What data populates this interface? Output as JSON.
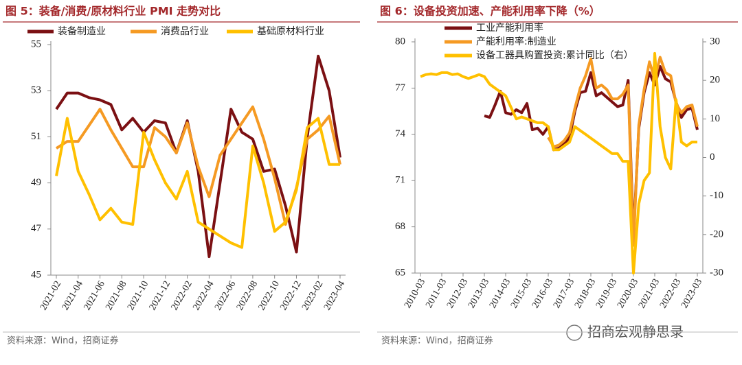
{
  "chart_data": [
    {
      "type": "line",
      "title": "图 5：装备/消费/原材料行业 PMI 走势对比",
      "source": "资料来源：Wind，招商证券",
      "legend": "top",
      "categories": [
        "2021-02",
        null,
        "2021-04",
        null,
        "2021-06",
        null,
        "2021-08",
        null,
        "2021-10",
        null,
        "2021-12",
        null,
        "2022-02",
        null,
        "2022-04",
        null,
        "2022-06",
        null,
        "2022-08",
        null,
        "2022-10",
        null,
        "2022-12",
        null,
        "2023-02",
        null,
        "2023-04"
      ],
      "ylim": [
        45,
        55
      ],
      "yticks": [
        45,
        47,
        49,
        51,
        53,
        55
      ],
      "series": [
        {
          "name": "装备制造业",
          "color": "#7b1013",
          "values": [
            52.2,
            52.9,
            52.9,
            52.7,
            52.6,
            52.4,
            51.3,
            51.8,
            51.2,
            51.7,
            51.6,
            50.3,
            51.7,
            49.5,
            45.8,
            49.0,
            52.2,
            51.2,
            50.9,
            49.5,
            49.6,
            48.0,
            46.0,
            51.0,
            54.5,
            53.0,
            50.1
          ]
        },
        {
          "name": "消费品行业",
          "color": "#f59a23",
          "values": [
            50.5,
            50.8,
            50.8,
            51.5,
            52.2,
            51.3,
            50.5,
            49.7,
            49.7,
            51.4,
            51.0,
            50.3,
            51.6,
            49.7,
            48.4,
            50.2,
            50.9,
            51.6,
            52.3,
            50.9,
            49.2,
            47.2,
            48.8,
            50.9,
            51.3,
            51.9,
            49.8
          ]
        },
        {
          "name": "基础原材料行业",
          "color": "#ffc000",
          "values": [
            49.3,
            51.8,
            49.5,
            48.5,
            47.4,
            47.9,
            47.3,
            47.2,
            51.2,
            50.0,
            49.0,
            48.3,
            49.5,
            47.3,
            47.0,
            46.7,
            46.4,
            46.2,
            50.6,
            49.0,
            46.9,
            47.3,
            48.7,
            51.4,
            51.8,
            49.8,
            49.8
          ]
        }
      ]
    },
    {
      "type": "line",
      "title": "图 6：设备投资加速、产能利用率下降（%）",
      "source": "资料来源：Wind，招商证券",
      "legend": "upper left",
      "categories": [
        "2010-03",
        null,
        null,
        null,
        "2011-03",
        null,
        null,
        null,
        "2012-03",
        null,
        null,
        null,
        "2013-03",
        null,
        null,
        null,
        "2014-03",
        null,
        null,
        null,
        "2015-03",
        null,
        null,
        null,
        "2016-03",
        null,
        null,
        null,
        "2017-03",
        null,
        null,
        null,
        "2018-03",
        null,
        null,
        null,
        "2019-03",
        null,
        null,
        null,
        "2020-03",
        null,
        null,
        null,
        "2021-03",
        null,
        null,
        null,
        "2022-03",
        null,
        null,
        null,
        "2023-03"
      ],
      "ylim": [
        65,
        80
      ],
      "yticks": [
        65,
        68,
        71,
        74,
        77,
        80
      ],
      "y2lim": [
        -30,
        30
      ],
      "y2ticks": [
        -30,
        -20,
        -10,
        0,
        10,
        20,
        30
      ],
      "series": [
        {
          "name": "工业产能利用率",
          "color": "#7b1013",
          "values": [
            null,
            null,
            null,
            null,
            null,
            null,
            null,
            null,
            null,
            null,
            null,
            null,
            75.2,
            75.1,
            75.9,
            76.8,
            75.4,
            75.3,
            75.6,
            75.4,
            76.0,
            74.3,
            74.4,
            74.0,
            74.5,
            73.0,
            73.1,
            73.4,
            73.8,
            75.5,
            76.7,
            76.8,
            78.0,
            76.5,
            76.7,
            76.4,
            76.1,
            75.8,
            75.9,
            77.5,
            67.3,
            74.4,
            76.7,
            78.0,
            77.2,
            78.4,
            77.6,
            77.4,
            76.1,
            75.1,
            75.6,
            75.7,
            74.3
          ]
        },
        {
          "name": "产能利用率:制造业",
          "color": "#f59a23",
          "values": [
            null,
            null,
            null,
            null,
            null,
            null,
            null,
            null,
            null,
            null,
            null,
            null,
            null,
            null,
            null,
            null,
            null,
            null,
            null,
            null,
            null,
            null,
            null,
            null,
            73.8,
            73.2,
            73.3,
            73.6,
            74.1,
            75.7,
            77.0,
            77.8,
            78.9,
            77.0,
            77.2,
            76.9,
            76.3,
            76.3,
            76.6,
            77.2,
            66.8,
            74.6,
            76.9,
            78.7,
            77.6,
            79.0,
            78.0,
            77.8,
            76.0,
            75.4,
            75.8,
            75.9,
            74.5
          ]
        },
        {
          "name": "设备工器具购置投资:累计同比（右）",
          "color": "#ffc000",
          "axis": "y2",
          "values": [
            21,
            21.5,
            21.7,
            21.5,
            22,
            22,
            21.5,
            21.7,
            21,
            20.5,
            21,
            21.5,
            21,
            19,
            18,
            17,
            16,
            13,
            10,
            10.5,
            10,
            9.5,
            9,
            9,
            8,
            2,
            2,
            3,
            4,
            8,
            7,
            6,
            5,
            4,
            3,
            2,
            1,
            1,
            -1,
            -1,
            -30,
            -12,
            -6,
            -4,
            27,
            8,
            0,
            -3,
            15,
            4,
            3,
            4,
            4
          ]
        }
      ]
    }
  ],
  "watermark": "招商宏观静思录"
}
